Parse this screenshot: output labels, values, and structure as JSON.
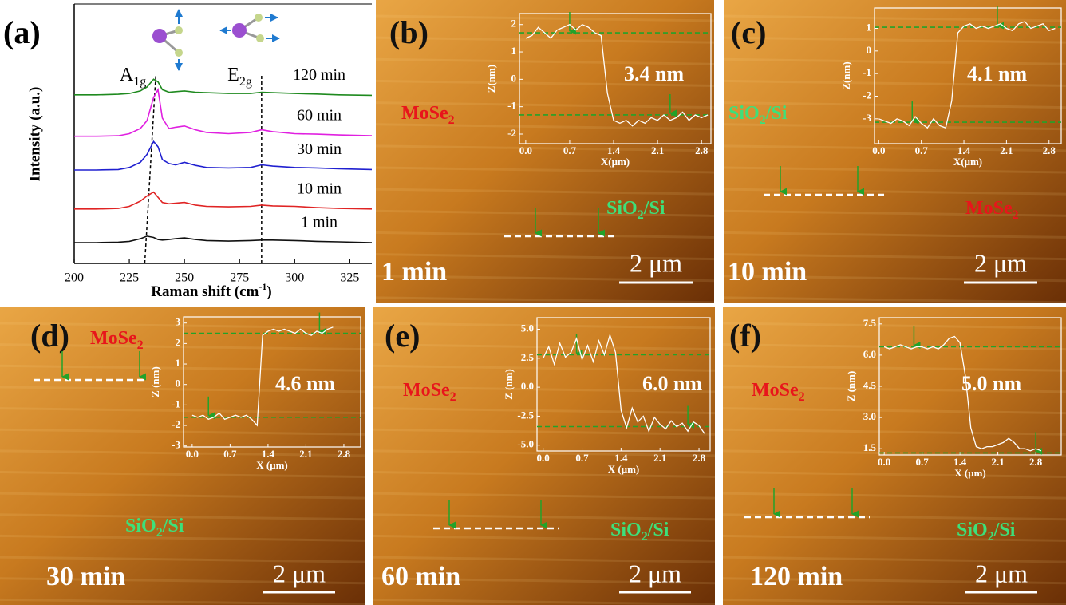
{
  "chart_data": [
    {
      "type": "line",
      "panel": "(a)",
      "ylabel": "Intensity (a.u.)",
      "xlabel": {
        "text": "Raman shift (cm",
        "sup": "-1",
        "tail": ")"
      },
      "x": [
        200,
        210,
        220,
        225,
        230,
        233,
        236,
        238,
        240,
        243,
        246,
        250,
        255,
        260,
        270,
        280,
        285,
        290,
        300,
        310,
        320,
        335
      ],
      "series": [
        {
          "name": "1 min",
          "color": "#111111",
          "values": [
            0.8,
            0.8,
            0.82,
            0.85,
            0.95,
            1.05,
            1.0,
            0.92,
            0.9,
            0.92,
            0.95,
            0.98,
            0.92,
            0.88,
            0.86,
            0.88,
            0.9,
            0.9,
            0.88,
            0.85,
            0.83,
            0.8
          ]
        },
        {
          "name": "10 min",
          "color": "#e02424",
          "values": [
            2.1,
            2.1,
            2.12,
            2.2,
            2.4,
            2.6,
            2.75,
            2.55,
            2.35,
            2.3,
            2.32,
            2.35,
            2.25,
            2.2,
            2.18,
            2.2,
            2.25,
            2.22,
            2.2,
            2.15,
            2.12,
            2.1
          ]
        },
        {
          "name": "30 min",
          "color": "#2020d0",
          "values": [
            3.6,
            3.6,
            3.62,
            3.7,
            3.9,
            4.2,
            4.7,
            4.5,
            4.0,
            3.85,
            3.8,
            3.9,
            3.78,
            3.7,
            3.68,
            3.7,
            3.8,
            3.75,
            3.7,
            3.68,
            3.65,
            3.62
          ]
        },
        {
          "name": "60 min",
          "color": "#e020e0",
          "values": [
            4.9,
            4.9,
            4.92,
            5.0,
            5.2,
            5.5,
            6.4,
            6.7,
            5.6,
            5.2,
            5.25,
            5.3,
            5.15,
            5.05,
            5.0,
            5.05,
            5.15,
            5.08,
            5.0,
            4.98,
            4.95,
            4.92
          ]
        },
        {
          "name": "120 min",
          "color": "#1f8a1f",
          "values": [
            6.5,
            6.5,
            6.52,
            6.55,
            6.65,
            6.8,
            7.1,
            7.0,
            6.7,
            6.6,
            6.62,
            6.65,
            6.6,
            6.58,
            6.55,
            6.55,
            6.6,
            6.58,
            6.55,
            6.53,
            6.5,
            6.48
          ]
        }
      ],
      "xlim": [
        200,
        335
      ],
      "ylim": [
        0,
        10
      ],
      "xticks": [
        200,
        225,
        250,
        275,
        300,
        325
      ],
      "peaks": [
        {
          "text": "A",
          "sub": "1g",
          "x": [
            232,
            237
          ]
        },
        {
          "text": "E",
          "sub": "2g",
          "x": [
            285,
            285
          ]
        }
      ]
    },
    {
      "type": "line",
      "panel": "(b)",
      "time": "1 min",
      "scale_bar": "2 μm",
      "annotation": "3.4 nm",
      "labels": [
        {
          "text": "MoSe",
          "sub": "2",
          "color": "#e8151b"
        },
        {
          "text": "SiO",
          "sub": "2",
          "tail": "/Si",
          "color": "#3de07a"
        }
      ],
      "xlabel": "X(μm)",
      "ylabel": "Z(nm)",
      "color": "#ffffff",
      "x": [
        0.0,
        0.1,
        0.2,
        0.3,
        0.4,
        0.5,
        0.6,
        0.7,
        0.8,
        0.9,
        1.0,
        1.1,
        1.2,
        1.3,
        1.4,
        1.5,
        1.6,
        1.7,
        1.8,
        1.9,
        2.0,
        2.1,
        2.2,
        2.3,
        2.4,
        2.5,
        2.6,
        2.7,
        2.8,
        2.9
      ],
      "values": [
        1.5,
        1.6,
        1.9,
        1.7,
        1.5,
        1.8,
        1.9,
        2.0,
        1.8,
        2.0,
        1.9,
        1.7,
        1.6,
        -0.5,
        -1.5,
        -1.6,
        -1.5,
        -1.7,
        -1.5,
        -1.6,
        -1.4,
        -1.5,
        -1.3,
        -1.5,
        -1.4,
        -1.2,
        -1.5,
        -1.3,
        -1.4,
        -1.3
      ],
      "xlim": [
        -0.1,
        2.95
      ],
      "ylim": [
        -2.35,
        2.4
      ],
      "xticks": [
        {
          "value": 0,
          "label": "0.0"
        },
        0.7,
        1.4,
        2.1,
        2.8
      ],
      "yticks": [
        2,
        1,
        0,
        -1,
        -2
      ],
      "markers": [
        {
          "x": 0.7,
          "z": 1.7
        },
        {
          "x": 2.3,
          "z": -1.3
        }
      ]
    },
    {
      "type": "line",
      "panel": "(c)",
      "time": "10 min",
      "scale_bar": "2 μm",
      "annotation": "4.1 nm",
      "labels": [
        {
          "text": "SiO",
          "sub": "2",
          "tail": "/Si",
          "color": "#3de07a"
        },
        {
          "text": "MoSe",
          "sub": "2",
          "color": "#e8151b"
        }
      ],
      "xlabel": "X(μm)",
      "ylabel": "Z(nm)",
      "color": "#ffffff",
      "x": [
        0.0,
        0.1,
        0.2,
        0.3,
        0.4,
        0.5,
        0.6,
        0.7,
        0.8,
        0.9,
        1.0,
        1.1,
        1.2,
        1.3,
        1.4,
        1.5,
        1.6,
        1.7,
        1.8,
        1.9,
        2.0,
        2.1,
        2.2,
        2.3,
        2.4,
        2.5,
        2.6,
        2.7,
        2.8,
        2.9
      ],
      "values": [
        -3.0,
        -3.1,
        -3.2,
        -3.0,
        -3.1,
        -3.3,
        -2.9,
        -3.2,
        -3.4,
        -3.0,
        -3.3,
        -3.4,
        -2.2,
        0.8,
        1.1,
        1.2,
        1.0,
        1.1,
        1.0,
        1.1,
        1.2,
        1.0,
        0.9,
        1.2,
        1.3,
        1.0,
        1.1,
        1.2,
        0.9,
        1.0
      ],
      "xlim": [
        -0.07,
        3.0
      ],
      "ylim": [
        -4.1,
        1.9
      ],
      "xticks": [
        {
          "value": 0,
          "label": "0.0"
        },
        0.7,
        1.4,
        2.1,
        2.8
      ],
      "yticks": [
        1,
        0,
        -1,
        -2,
        -3
      ],
      "markers": [
        {
          "x": 0.55,
          "z": -3.15
        },
        {
          "x": 1.95,
          "z": 1.05
        }
      ]
    },
    {
      "type": "line",
      "panel": "(d)",
      "time": "30 min",
      "scale_bar": "2 μm",
      "annotation": "4.6 nm",
      "labels": [
        {
          "text": "MoSe",
          "sub": "2",
          "color": "#e8151b"
        },
        {
          "text": "SiO",
          "sub": "2",
          "tail": "/Si",
          "color": "#3de07a"
        }
      ],
      "xlabel": "X (μm)",
      "ylabel": "Z (nm)",
      "color": "#ffffff",
      "x": [
        0.0,
        0.1,
        0.2,
        0.3,
        0.4,
        0.5,
        0.6,
        0.7,
        0.8,
        0.9,
        1.0,
        1.1,
        1.2,
        1.3,
        1.4,
        1.5,
        1.6,
        1.7,
        1.8,
        1.9,
        2.0,
        2.1,
        2.2,
        2.3,
        2.4,
        2.5,
        2.6
      ],
      "values": [
        -1.5,
        -1.6,
        -1.5,
        -1.7,
        -1.6,
        -1.4,
        -1.7,
        -1.6,
        -1.5,
        -1.6,
        -1.5,
        -1.7,
        -2.0,
        2.4,
        2.6,
        2.7,
        2.6,
        2.7,
        2.6,
        2.5,
        2.7,
        2.5,
        2.4,
        2.6,
        2.5,
        2.7,
        2.8
      ],
      "xlim": [
        -0.16,
        3.11
      ],
      "ylim": [
        -3.05,
        3.3
      ],
      "xticks": [
        {
          "value": 0,
          "label": "0.0"
        },
        0.7,
        1.4,
        2.1,
        2.8
      ],
      "yticks": [
        3,
        2,
        1,
        0,
        -1,
        -2,
        -3
      ],
      "markers": [
        {
          "x": 0.3,
          "z": -1.6
        },
        {
          "x": 2.35,
          "z": 2.5
        }
      ]
    },
    {
      "type": "line",
      "panel": "(e)",
      "time": "60 min",
      "scale_bar": "2 μm",
      "annotation": "6.0 nm",
      "labels": [
        {
          "text": "MoSe",
          "sub": "2",
          "color": "#e8151b"
        },
        {
          "text": "SiO",
          "sub": "2",
          "tail": "/Si",
          "color": "#3de07a"
        }
      ],
      "xlabel": "X (μm)",
      "ylabel": "Z (nm)",
      "color": "#ffffff",
      "x": [
        0.0,
        0.1,
        0.2,
        0.3,
        0.4,
        0.5,
        0.6,
        0.7,
        0.8,
        0.9,
        1.0,
        1.1,
        1.2,
        1.3,
        1.4,
        1.5,
        1.6,
        1.7,
        1.8,
        1.9,
        2.0,
        2.1,
        2.2,
        2.3,
        2.4,
        2.5,
        2.6,
        2.7,
        2.8,
        2.9
      ],
      "values": [
        2.5,
        3.5,
        2.0,
        3.8,
        2.6,
        3.0,
        4.2,
        2.4,
        3.6,
        2.2,
        4.0,
        2.8,
        4.5,
        3.0,
        -2.0,
        -3.5,
        -1.8,
        -3.0,
        -2.5,
        -3.8,
        -2.6,
        -3.2,
        -3.6,
        -2.9,
        -3.4,
        -3.1,
        -3.8,
        -3.0,
        -3.3,
        -4.0
      ],
      "xlim": [
        -0.11,
        3.0
      ],
      "ylim": [
        -5.5,
        6.0
      ],
      "xticks": [
        {
          "value": 0,
          "label": "0.0"
        },
        0.7,
        1.4,
        2.1,
        2.8
      ],
      "yticks": [
        {
          "value": 5,
          "label": "5.0"
        },
        2.5,
        {
          "value": 0,
          "label": "0.0"
        },
        -2.5,
        {
          "value": -5,
          "label": "-5.0"
        }
      ],
      "markers": [
        {
          "x": 0.6,
          "z": 2.8
        },
        {
          "x": 2.6,
          "z": -3.4
        }
      ]
    },
    {
      "type": "line",
      "panel": "(f)",
      "time": "120 min",
      "scale_bar": "2 μm",
      "annotation": "5.0 nm",
      "labels": [
        {
          "text": "MoSe",
          "sub": "2",
          "color": "#e8151b"
        },
        {
          "text": "SiO",
          "sub": "2",
          "tail": "/Si",
          "color": "#3de07a"
        }
      ],
      "xlabel": "X (μm)",
      "ylabel": "Z (nm)",
      "color": "#ffffff",
      "x": [
        0.0,
        0.1,
        0.2,
        0.3,
        0.4,
        0.5,
        0.6,
        0.7,
        0.8,
        0.9,
        1.0,
        1.1,
        1.2,
        1.3,
        1.4,
        1.5,
        1.6,
        1.7,
        1.8,
        1.9,
        2.0,
        2.1,
        2.2,
        2.3,
        2.4,
        2.5,
        2.6,
        2.7,
        2.8,
        2.9
      ],
      "values": [
        6.4,
        6.3,
        6.4,
        6.5,
        6.4,
        6.3,
        6.4,
        6.4,
        6.3,
        6.4,
        6.3,
        6.5,
        6.8,
        6.9,
        6.6,
        5.0,
        2.5,
        1.6,
        1.5,
        1.6,
        1.6,
        1.7,
        1.8,
        2.0,
        1.8,
        1.5,
        1.5,
        1.4,
        1.5,
        1.4
      ],
      "xlim": [
        -0.09,
        3.27
      ],
      "ylim": [
        1.2,
        7.8
      ],
      "xticks": [
        {
          "value": 0,
          "label": "0.0"
        },
        0.7,
        1.4,
        2.1,
        2.8
      ],
      "yticks": [
        7.5,
        {
          "value": 6,
          "label": "6.0"
        },
        4.5,
        {
          "value": 3,
          "label": "3.0"
        },
        1.5
      ],
      "markers": [
        {
          "x": 0.55,
          "z": 6.4
        },
        {
          "x": 2.8,
          "z": 1.3
        }
      ]
    }
  ]
}
